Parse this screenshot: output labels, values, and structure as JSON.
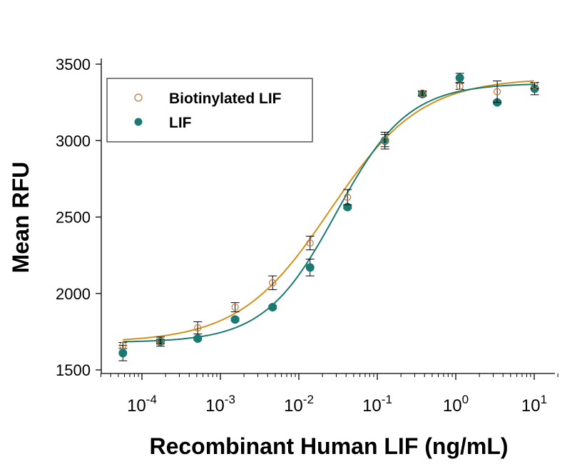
{
  "chart_data": {
    "type": "scatter",
    "title": "",
    "xlabel": "Recombinant Human LIF (ng/mL)",
    "ylabel": "Mean RFU",
    "x_scale": "log",
    "xlim": [
      3e-05,
      20
    ],
    "ylim": [
      1500,
      3500
    ],
    "x_ticks": [
      {
        "value": 0.0001,
        "base": "10",
        "exp": "-4"
      },
      {
        "value": 0.001,
        "base": "10",
        "exp": "-3"
      },
      {
        "value": 0.01,
        "base": "10",
        "exp": "-2"
      },
      {
        "value": 0.1,
        "base": "10",
        "exp": "-1"
      },
      {
        "value": 1,
        "base": "10",
        "exp": "0"
      },
      {
        "value": 10,
        "base": "10",
        "exp": "1"
      }
    ],
    "y_ticks": [
      1500,
      2000,
      2500,
      3000,
      3500
    ],
    "grid": false,
    "legend_position": "top-left",
    "series": [
      {
        "name": "Biotinylated LIF",
        "marker": "open-circle",
        "color": "#c0773a",
        "curve_color": "#d4901c",
        "fit": {
          "bottom": 1680,
          "top": 3410,
          "ec50": 0.025,
          "hill": 0.75
        },
        "points": [
          {
            "x": 5.72e-05,
            "y": 1660,
            "err": 20
          },
          {
            "x": 0.000172,
            "y": 1685,
            "err": 15
          },
          {
            "x": 0.000514,
            "y": 1775,
            "err": 40
          },
          {
            "x": 0.00154,
            "y": 1910,
            "err": 30
          },
          {
            "x": 0.00463,
            "y": 2070,
            "err": 45
          },
          {
            "x": 0.0139,
            "y": 2330,
            "err": 45
          },
          {
            "x": 0.0417,
            "y": 2630,
            "err": 50
          },
          {
            "x": 0.125,
            "y": 3000,
            "err": 40
          },
          {
            "x": 0.375,
            "y": 3310,
            "err": 15
          },
          {
            "x": 1.125,
            "y": 3355,
            "err": 20
          },
          {
            "x": 3.375,
            "y": 3320,
            "err": 70
          },
          {
            "x": 10.125,
            "y": 3360,
            "err": 20
          }
        ]
      },
      {
        "name": "LIF",
        "marker": "filled-circle",
        "color": "#1a7a72",
        "curve_color": "#1a7a72",
        "fit": {
          "bottom": 1680,
          "top": 3375,
          "ec50": 0.03,
          "hill": 0.95
        },
        "points": [
          {
            "x": 5.72e-05,
            "y": 1610,
            "err": 50
          },
          {
            "x": 0.000172,
            "y": 1685,
            "err": 30
          },
          {
            "x": 0.000514,
            "y": 1705,
            "err": 10
          },
          {
            "x": 0.00154,
            "y": 1830,
            "err": 10
          },
          {
            "x": 0.00463,
            "y": 1910,
            "err": 10
          },
          {
            "x": 0.0139,
            "y": 2170,
            "err": 55
          },
          {
            "x": 0.0417,
            "y": 2565,
            "err": 10
          },
          {
            "x": 0.125,
            "y": 3000,
            "err": 55
          },
          {
            "x": 0.375,
            "y": 3305,
            "err": 15
          },
          {
            "x": 1.125,
            "y": 3410,
            "err": 30
          },
          {
            "x": 3.375,
            "y": 3250,
            "err": 10
          },
          {
            "x": 10.125,
            "y": 3340,
            "err": 40
          }
        ]
      }
    ]
  }
}
